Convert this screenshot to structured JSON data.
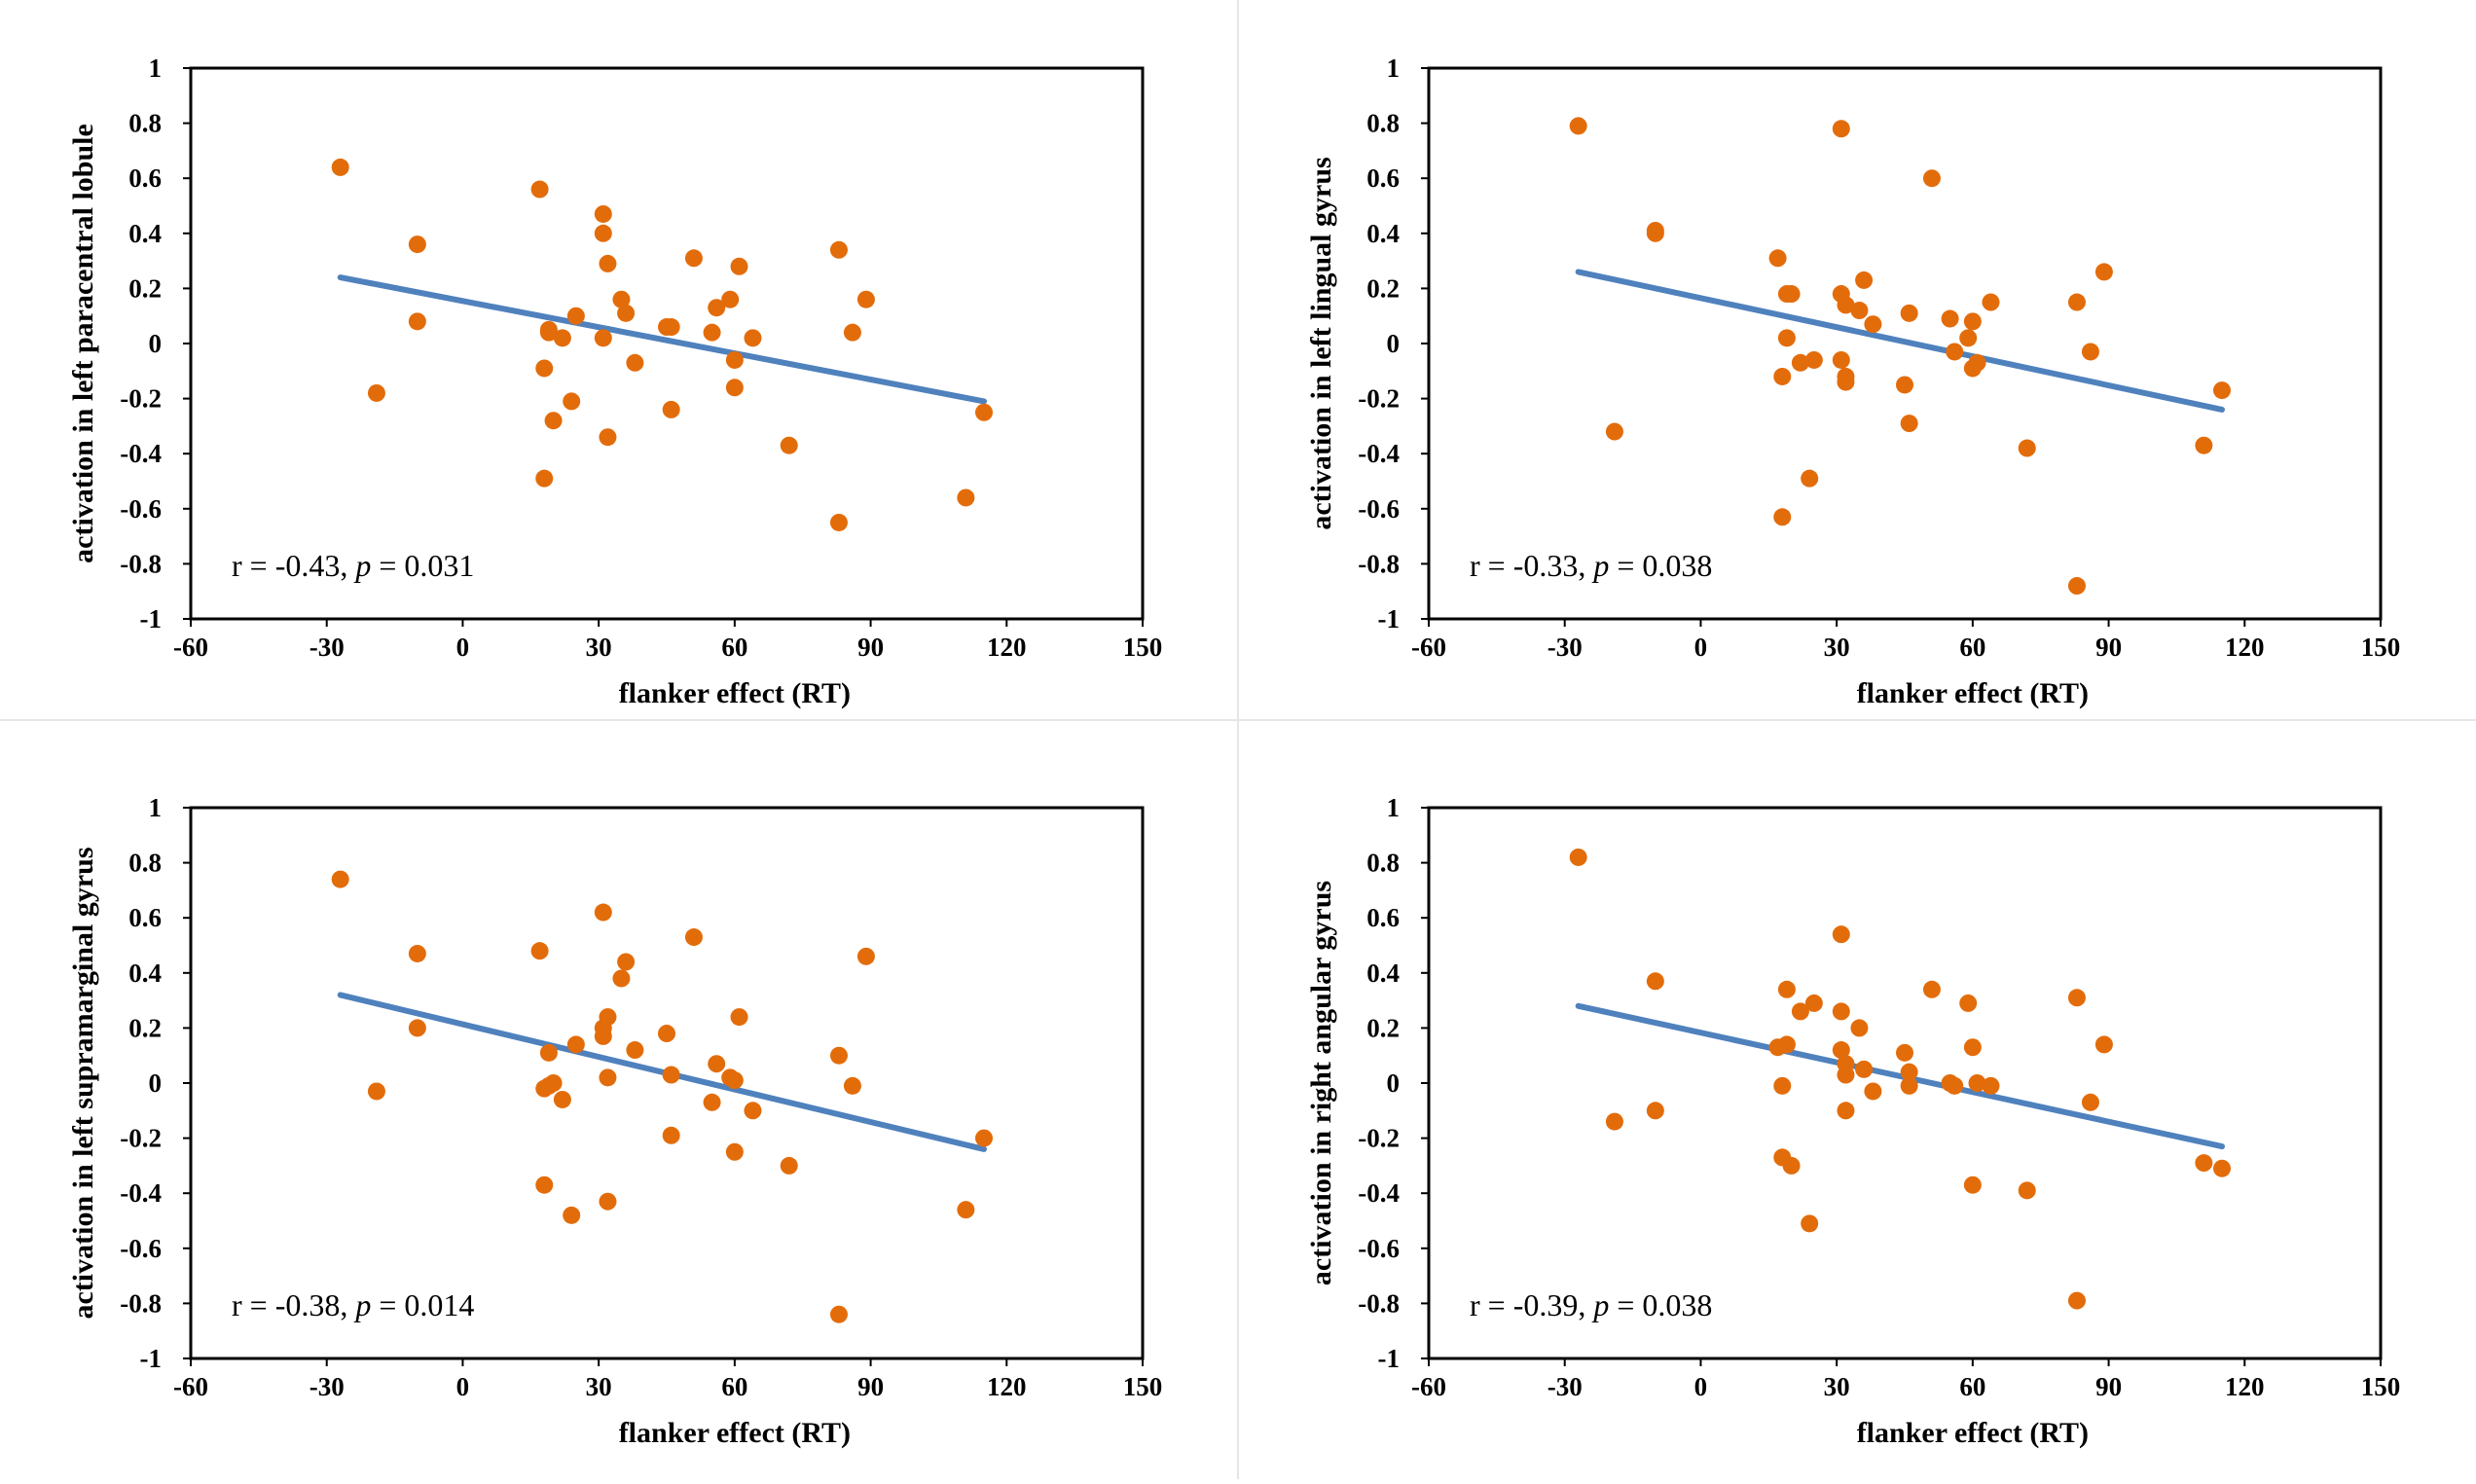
{
  "colors": {
    "points": "#E36C0A",
    "trend": "#4F81BD",
    "frame": "#000000"
  },
  "chart_data": [
    {
      "type": "scatter",
      "xlabel": "flanker effect (RT)",
      "ylabel": "activation in left paracentral lobule",
      "xlim": [
        -60,
        150
      ],
      "ylim": [
        -1,
        1
      ],
      "xticks": [
        "-60",
        "-30",
        "0",
        "30",
        "60",
        "90",
        "120",
        "150"
      ],
      "yticks": [
        "1",
        "0.8",
        "0.6",
        "0.4",
        "0.2",
        "0",
        "-0.2",
        "-0.4",
        "-0.6",
        "-0.8",
        "-1"
      ],
      "annotation": {
        "r": "r = -0.43, ",
        "p_italic": "p",
        "p_value": " = 0.031"
      },
      "trendline": {
        "x": [
          -27,
          115
        ],
        "y": [
          0.24,
          -0.21
        ]
      },
      "points": [
        [
          -27,
          0.64
        ],
        [
          -19,
          -0.18
        ],
        [
          -10,
          0.08
        ],
        [
          -10,
          0.36
        ],
        [
          17,
          0.56
        ],
        [
          18,
          -0.09
        ],
        [
          18,
          -0.49
        ],
        [
          19,
          0.05
        ],
        [
          19,
          0.04
        ],
        [
          20,
          -0.28
        ],
        [
          22,
          0.02
        ],
        [
          24,
          -0.21
        ],
        [
          25,
          0.1
        ],
        [
          31,
          0.47
        ],
        [
          31,
          0.4
        ],
        [
          31,
          0.02
        ],
        [
          32,
          0.29
        ],
        [
          32,
          -0.34
        ],
        [
          35,
          0.16
        ],
        [
          36,
          0.11
        ],
        [
          38,
          -0.07
        ],
        [
          45,
          0.06
        ],
        [
          46,
          0.06
        ],
        [
          46,
          -0.24
        ],
        [
          51,
          0.31
        ],
        [
          55,
          0.04
        ],
        [
          56,
          0.13
        ],
        [
          59,
          0.16
        ],
        [
          60,
          -0.06
        ],
        [
          60,
          -0.16
        ],
        [
          61,
          0.28
        ],
        [
          64,
          0.02
        ],
        [
          72,
          -0.37
        ],
        [
          83,
          0.34
        ],
        [
          83,
          -0.65
        ],
        [
          86,
          0.04
        ],
        [
          89,
          0.16
        ],
        [
          111,
          -0.56
        ],
        [
          115,
          -0.25
        ]
      ]
    },
    {
      "type": "scatter",
      "xlabel": "flanker effect (RT)",
      "ylabel": "activation in left lingual gyrus",
      "xlim": [
        -60,
        150
      ],
      "ylim": [
        -1,
        1
      ],
      "xticks": [
        "-60",
        "-30",
        "0",
        "30",
        "60",
        "90",
        "120",
        "150"
      ],
      "yticks": [
        "1",
        "0.8",
        "0.6",
        "0.4",
        "0.2",
        "0",
        "-0.2",
        "-0.4",
        "-0.6",
        "-0.8",
        "-1"
      ],
      "annotation": {
        "r": "r = -0.33, ",
        "p_italic": "p",
        "p_value": " = 0.038"
      },
      "trendline": {
        "x": [
          -27,
          115
        ],
        "y": [
          0.26,
          -0.24
        ]
      },
      "points": [
        [
          -27,
          0.79
        ],
        [
          -19,
          -0.32
        ],
        [
          -10,
          0.4
        ],
        [
          -10,
          0.41
        ],
        [
          17,
          0.31
        ],
        [
          18,
          -0.12
        ],
        [
          18,
          -0.63
        ],
        [
          19,
          0.18
        ],
        [
          19,
          0.02
        ],
        [
          20,
          0.18
        ],
        [
          22,
          -0.07
        ],
        [
          24,
          -0.49
        ],
        [
          25,
          -0.06
        ],
        [
          31,
          0.78
        ],
        [
          31,
          0.18
        ],
        [
          31,
          -0.06
        ],
        [
          32,
          -0.12
        ],
        [
          32,
          -0.14
        ],
        [
          32,
          0.14
        ],
        [
          35,
          0.12
        ],
        [
          36,
          0.23
        ],
        [
          38,
          0.07
        ],
        [
          45,
          -0.15
        ],
        [
          46,
          0.11
        ],
        [
          46,
          -0.29
        ],
        [
          51,
          0.6
        ],
        [
          55,
          0.09
        ],
        [
          56,
          -0.03
        ],
        [
          59,
          0.02
        ],
        [
          60,
          0.08
        ],
        [
          60,
          -0.09
        ],
        [
          61,
          -0.07
        ],
        [
          64,
          0.15
        ],
        [
          72,
          -0.38
        ],
        [
          83,
          0.15
        ],
        [
          83,
          -0.88
        ],
        [
          86,
          -0.03
        ],
        [
          89,
          0.26
        ],
        [
          111,
          -0.37
        ],
        [
          115,
          -0.17
        ]
      ]
    },
    {
      "type": "scatter",
      "xlabel": "flanker effect (RT)",
      "ylabel": "activation in left supramarginal gyrus",
      "xlim": [
        -60,
        150
      ],
      "ylim": [
        -1,
        1
      ],
      "xticks": [
        "-60",
        "-30",
        "0",
        "30",
        "60",
        "90",
        "120",
        "150"
      ],
      "yticks": [
        "1",
        "0.8",
        "0.6",
        "0.4",
        "0.2",
        "0",
        "-0.2",
        "-0.4",
        "-0.6",
        "-0.8",
        "-1"
      ],
      "annotation": {
        "r": "r = -0.38, ",
        "p_italic": "p",
        "p_value": " = 0.014"
      },
      "trendline": {
        "x": [
          -27,
          115
        ],
        "y": [
          0.32,
          -0.24
        ]
      },
      "points": [
        [
          -27,
          0.74
        ],
        [
          -19,
          -0.03
        ],
        [
          -10,
          0.2
        ],
        [
          -10,
          0.47
        ],
        [
          17,
          0.48
        ],
        [
          18,
          -0.02
        ],
        [
          18,
          -0.37
        ],
        [
          19,
          0.11
        ],
        [
          19,
          -0.01
        ],
        [
          20,
          0.0
        ],
        [
          22,
          -0.06
        ],
        [
          24,
          -0.48
        ],
        [
          25,
          0.14
        ],
        [
          31,
          0.62
        ],
        [
          31,
          0.2
        ],
        [
          31,
          0.17
        ],
        [
          32,
          0.24
        ],
        [
          32,
          -0.43
        ],
        [
          32,
          0.02
        ],
        [
          35,
          0.38
        ],
        [
          36,
          0.44
        ],
        [
          38,
          0.12
        ],
        [
          45,
          0.18
        ],
        [
          46,
          0.03
        ],
        [
          46,
          -0.19
        ],
        [
          51,
          0.53
        ],
        [
          55,
          -0.07
        ],
        [
          56,
          0.07
        ],
        [
          59,
          0.02
        ],
        [
          60,
          0.01
        ],
        [
          60,
          -0.25
        ],
        [
          61,
          0.24
        ],
        [
          64,
          -0.1
        ],
        [
          72,
          -0.3
        ],
        [
          83,
          0.1
        ],
        [
          83,
          -0.84
        ],
        [
          86,
          -0.01
        ],
        [
          89,
          0.46
        ],
        [
          111,
          -0.46
        ],
        [
          115,
          -0.2
        ]
      ]
    },
    {
      "type": "scatter",
      "xlabel": "flanker effect (RT)",
      "ylabel": "activation in right angular gyrus",
      "xlim": [
        -60,
        150
      ],
      "ylim": [
        -1,
        1
      ],
      "xticks": [
        "-60",
        "-30",
        "0",
        "30",
        "60",
        "90",
        "120",
        "150"
      ],
      "yticks": [
        "1",
        "0.8",
        "0.6",
        "0.4",
        "0.2",
        "0",
        "-0.2",
        "-0.4",
        "-0.6",
        "-0.8",
        "-1"
      ],
      "annotation": {
        "r": "r = -0.39, ",
        "p_italic": "p",
        "p_value": " = 0.038"
      },
      "trendline": {
        "x": [
          -27,
          115
        ],
        "y": [
          0.28,
          -0.23
        ]
      },
      "points": [
        [
          -27,
          0.82
        ],
        [
          -19,
          -0.14
        ],
        [
          -10,
          -0.1
        ],
        [
          -10,
          0.37
        ],
        [
          17,
          0.13
        ],
        [
          18,
          -0.01
        ],
        [
          18,
          -0.27
        ],
        [
          19,
          0.34
        ],
        [
          19,
          0.14
        ],
        [
          20,
          -0.3
        ],
        [
          22,
          0.26
        ],
        [
          24,
          -0.51
        ],
        [
          25,
          0.29
        ],
        [
          31,
          0.54
        ],
        [
          31,
          0.26
        ],
        [
          31,
          0.12
        ],
        [
          32,
          0.03
        ],
        [
          32,
          -0.1
        ],
        [
          32,
          0.07
        ],
        [
          35,
          0.2
        ],
        [
          36,
          0.05
        ],
        [
          38,
          -0.03
        ],
        [
          45,
          0.11
        ],
        [
          46,
          0.04
        ],
        [
          46,
          -0.01
        ],
        [
          51,
          0.34
        ],
        [
          55,
          0.0
        ],
        [
          56,
          -0.01
        ],
        [
          59,
          0.29
        ],
        [
          60,
          0.13
        ],
        [
          60,
          -0.37
        ],
        [
          61,
          0.0
        ],
        [
          64,
          -0.01
        ],
        [
          72,
          -0.39
        ],
        [
          83,
          0.31
        ],
        [
          83,
          -0.79
        ],
        [
          86,
          -0.07
        ],
        [
          89,
          0.14
        ],
        [
          111,
          -0.29
        ],
        [
          115,
          -0.31
        ]
      ]
    }
  ]
}
